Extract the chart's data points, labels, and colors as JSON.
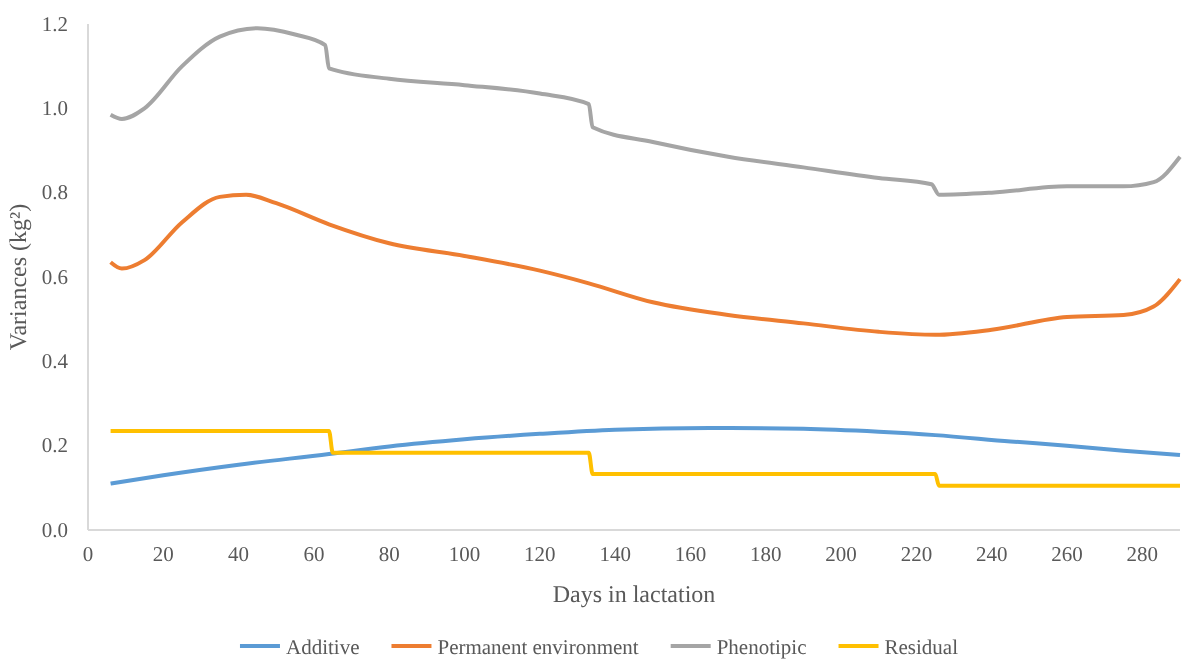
{
  "chart_data": {
    "type": "line",
    "xlabel": "Days in lactation",
    "ylabel": "Variances (kg²)",
    "xlim": [
      0,
      290
    ],
    "xticks": [
      0,
      20,
      40,
      60,
      80,
      100,
      120,
      140,
      160,
      180,
      200,
      220,
      240,
      260,
      280
    ],
    "ylim": [
      0,
      1.2
    ],
    "yticks": [
      {
        "value": 0,
        "label": "0.0"
      },
      0.2,
      0.4,
      0.6,
      0.8,
      {
        "value": 1,
        "label": "1.0"
      },
      1.2
    ],
    "grid": false,
    "legend": "bottom",
    "marker": "none",
    "line_style": "solid",
    "series": [
      {
        "name": "Additive",
        "color": "#5b9bd5",
        "x": [
          6,
          20,
          40,
          64,
          80,
          100,
          120,
          140,
          165,
          190,
          210,
          225,
          245,
          260,
          275,
          290
        ],
        "values": [
          0.11,
          0.13,
          0.155,
          0.18,
          0.198,
          0.215,
          0.228,
          0.238,
          0.242,
          0.24,
          0.233,
          0.225,
          0.21,
          0.2,
          0.188,
          0.178
        ]
      },
      {
        "name": "Permanent environment",
        "color": "#ed7d31",
        "x": [
          6,
          9,
          15,
          25,
          35,
          42,
          50,
          64,
          80,
          100,
          120,
          133,
          150,
          170,
          190,
          210,
          225,
          240,
          260,
          275,
          283,
          290
        ],
        "values": [
          0.635,
          0.62,
          0.64,
          0.73,
          0.79,
          0.795,
          0.775,
          0.725,
          0.68,
          0.65,
          0.615,
          0.585,
          0.54,
          0.51,
          0.49,
          0.47,
          0.463,
          0.475,
          0.505,
          0.51,
          0.53,
          0.595
        ]
      },
      {
        "name": "Phenotipic",
        "color": "#a5a5a5",
        "x": [
          6,
          9,
          15,
          25,
          35,
          45,
          55,
          63,
          64,
          80,
          100,
          120,
          133,
          134,
          150,
          170,
          190,
          210,
          224,
          226,
          240,
          260,
          275,
          283,
          290
        ],
        "values": [
          0.985,
          0.975,
          1.0,
          1.1,
          1.17,
          1.19,
          1.175,
          1.15,
          1.095,
          1.07,
          1.055,
          1.035,
          1.01,
          0.955,
          0.92,
          0.885,
          0.86,
          0.835,
          0.82,
          0.795,
          0.8,
          0.815,
          0.815,
          0.825,
          0.885
        ]
      },
      {
        "name": "Residual",
        "color": "#ffc000",
        "x": [
          6,
          64,
          65,
          133,
          134,
          225,
          226,
          290
        ],
        "values": [
          0.235,
          0.235,
          0.183,
          0.183,
          0.133,
          0.133,
          0.105,
          0.105
        ]
      }
    ]
  }
}
